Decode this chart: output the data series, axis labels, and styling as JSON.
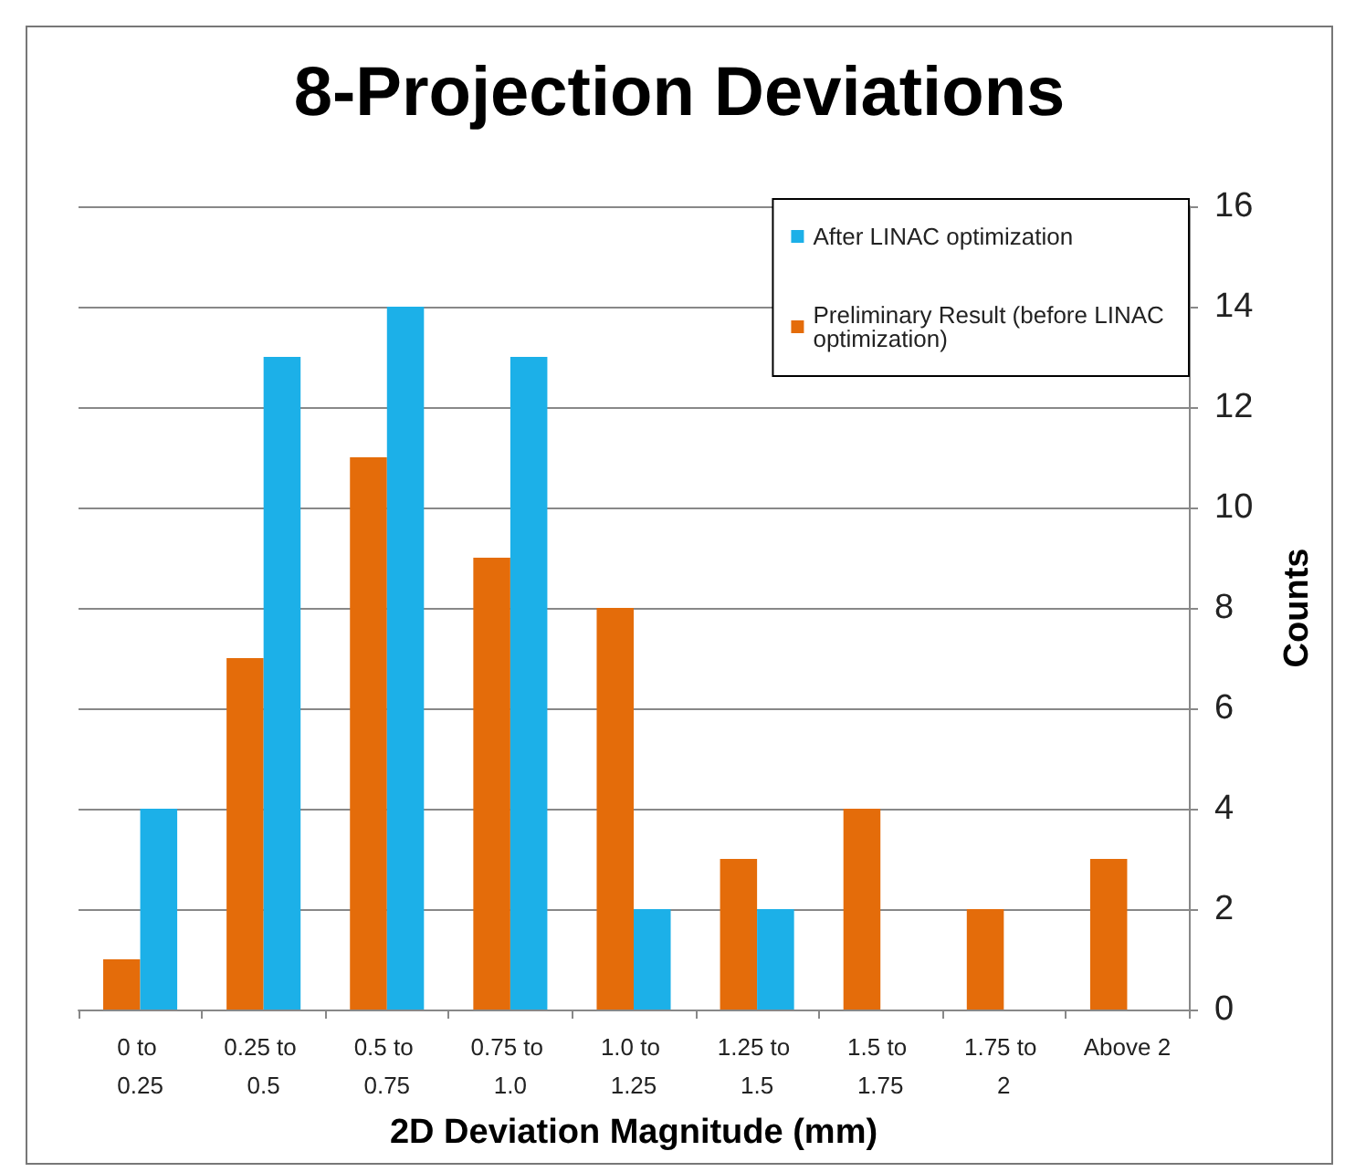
{
  "chart_data": {
    "type": "bar",
    "title": "8-Projection Deviations",
    "xlabel": "2D Deviation Magnitude (mm)",
    "ylabel": "Counts",
    "categories": [
      "0 to 0.25",
      "0.25 to 0.5",
      "0.5 to 0.75",
      "0.75 to 1.0",
      "1.0 to 1.25",
      "1.25 to 1.5",
      "1.5 to 1.75",
      "1.75 to 2",
      "Above 2"
    ],
    "series": [
      {
        "name": "Preliminary Result (before LINAC optimization)",
        "color": "#e46c0a",
        "values": [
          1,
          7,
          11,
          9,
          8,
          3,
          4,
          2,
          3
        ]
      },
      {
        "name": "After LINAC optimization",
        "color": "#1cb0e8",
        "values": [
          4,
          13,
          14,
          13,
          2,
          2,
          0,
          0,
          0
        ]
      }
    ],
    "ylim": [
      0,
      16
    ],
    "yticks": [
      0,
      2,
      4,
      6,
      8,
      10,
      12,
      14,
      16
    ],
    "grid": "y",
    "legend": "top right"
  }
}
